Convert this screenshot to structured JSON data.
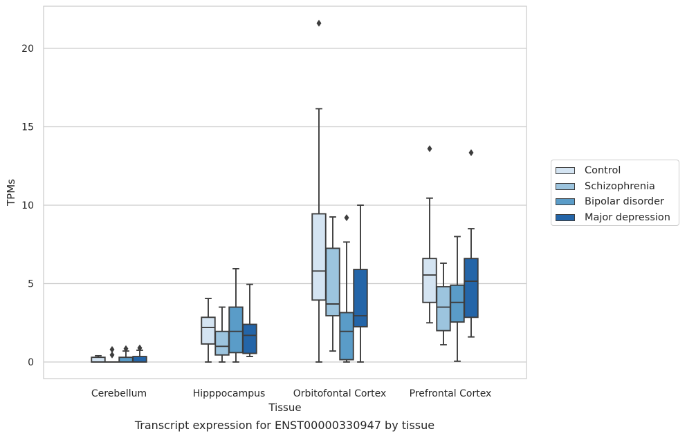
{
  "caption": "Transcript expression for ENST00000330947 by tissue",
  "chart_data": {
    "type": "box",
    "xlabel": "Tissue",
    "ylabel": "TPMs",
    "ylim": [
      -1.05,
      22.7
    ],
    "yticks": [
      0,
      5,
      10,
      15,
      20
    ],
    "grid": "horizontal",
    "legend_position": "right",
    "categories": [
      "Cerebellum",
      "Hipppocampus",
      "Orbitofontal Cortex",
      "Prefrontal Cortex"
    ],
    "series": [
      {
        "name": "Control",
        "color": "#d4e4f2",
        "boxes": [
          {
            "whislo": 0,
            "q1": 0,
            "med": 0,
            "q3": 0.3,
            "whishi": 0.4,
            "fliers": []
          },
          {
            "whislo": 0,
            "q1": 1.15,
            "med": 2.2,
            "q3": 2.85,
            "whishi": 4.05,
            "fliers": []
          },
          {
            "whislo": 0,
            "q1": 3.95,
            "med": 5.8,
            "q3": 9.45,
            "whishi": 16.15,
            "fliers": [
              21.6
            ]
          },
          {
            "whislo": 2.5,
            "q1": 3.8,
            "med": 5.55,
            "q3": 6.6,
            "whishi": 10.45,
            "fliers": [
              13.6
            ]
          }
        ]
      },
      {
        "name": "Schizophrenia",
        "color": "#9cc4de",
        "boxes": [
          {
            "whislo": 0,
            "q1": 0,
            "med": 0,
            "q3": 0,
            "whishi": 0,
            "fliers": [
              0.45,
              0.8
            ]
          },
          {
            "whislo": 0,
            "q1": 0.45,
            "med": 1.0,
            "q3": 1.95,
            "whishi": 3.5,
            "fliers": []
          },
          {
            "whislo": 0.7,
            "q1": 2.95,
            "med": 3.7,
            "q3": 7.25,
            "whishi": 9.25,
            "fliers": []
          },
          {
            "whislo": 1.1,
            "q1": 2.0,
            "med": 3.5,
            "q3": 4.8,
            "whishi": 6.3,
            "fliers": []
          }
        ]
      },
      {
        "name": "Bipolar disorder",
        "color": "#5a9cc8",
        "boxes": [
          {
            "whislo": 0,
            "q1": 0,
            "med": 0,
            "q3": 0.3,
            "whishi": 0.7,
            "fliers": [
              0.85
            ]
          },
          {
            "whislo": 0,
            "q1": 0.6,
            "med": 1.95,
            "q3": 3.5,
            "whishi": 5.95,
            "fliers": []
          },
          {
            "whislo": 0,
            "q1": 0.15,
            "med": 1.95,
            "q3": 3.15,
            "whishi": 7.65,
            "fliers": [
              9.2
            ]
          },
          {
            "whislo": 0.05,
            "q1": 2.55,
            "med": 3.8,
            "q3": 4.9,
            "whishi": 8.0,
            "fliers": []
          }
        ]
      },
      {
        "name": "Major depression",
        "color": "#2465a8",
        "boxes": [
          {
            "whislo": 0,
            "q1": 0,
            "med": 0,
            "q3": 0.35,
            "whishi": 0.75,
            "fliers": [
              0.9
            ]
          },
          {
            "whislo": 0.35,
            "q1": 0.55,
            "med": 1.7,
            "q3": 2.4,
            "whishi": 4.95,
            "fliers": []
          },
          {
            "whislo": 0,
            "q1": 2.25,
            "med": 2.95,
            "q3": 5.9,
            "whishi": 10.0,
            "fliers": []
          },
          {
            "whislo": 1.6,
            "q1": 2.85,
            "med": 5.15,
            "q3": 6.6,
            "whishi": 8.5,
            "fliers": [
              13.35
            ]
          }
        ]
      }
    ]
  }
}
